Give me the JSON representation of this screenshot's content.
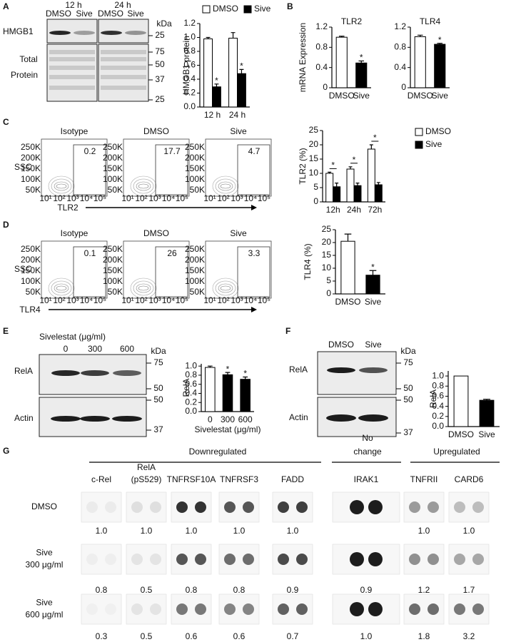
{
  "chart_data": [
    {
      "type": "bar",
      "ylabel": "HMGB1 protein",
      "categories": [
        "12 h",
        "24 h"
      ],
      "series": [
        {
          "name": "DMSO",
          "color": "#ffffff",
          "values": [
            0.98,
            0.99
          ],
          "errors": [
            0.02,
            0.08
          ]
        },
        {
          "name": "Sive",
          "color": "#000000",
          "values": [
            0.29,
            0.48
          ],
          "errors": [
            0.04,
            0.06
          ],
          "markers": [
            "*",
            "*"
          ]
        }
      ],
      "ylim": [
        0,
        1.2
      ],
      "yticks": [
        {
          "value": 0,
          "label": "0.0"
        },
        0.2,
        0.4,
        0.6,
        0.8,
        {
          "value": 1,
          "label": "1.0"
        },
        1.2
      ],
      "legend": "top"
    },
    {
      "type": "bar",
      "title": "TLR2",
      "ylabel": "mRNA Expression",
      "categories": [
        "DMSO",
        "Sive"
      ],
      "values": [
        1.0,
        0.49
      ],
      "errors": [
        0.02,
        0.04
      ],
      "colors": [
        "#ffffff",
        "#000000"
      ],
      "markers": [
        null,
        "*"
      ],
      "ylim": [
        0,
        1.2
      ],
      "yticks": [
        0,
        0.4,
        0.8,
        1.2
      ]
    },
    {
      "type": "bar",
      "title": "TLR4",
      "categories": [
        "DMSO",
        "Sive"
      ],
      "values": [
        1.01,
        0.86
      ],
      "errors": [
        0.03,
        0.02
      ],
      "colors": [
        "#ffffff",
        "#000000"
      ],
      "markers": [
        null,
        "*"
      ],
      "ylim": [
        0,
        1.2
      ],
      "yticks": [
        0,
        0.4,
        0.8,
        1.2
      ]
    },
    {
      "type": "bar",
      "ylabel": "TLR2 (%)",
      "categories": [
        "12h",
        "24h",
        "72h"
      ],
      "series": [
        {
          "name": "DMSO",
          "color": "#ffffff",
          "values": [
            10,
            11.5,
            18.5
          ],
          "errors": [
            0.4,
            0.8,
            1.5
          ]
        },
        {
          "name": "Sive",
          "color": "#000000",
          "values": [
            5.3,
            5.7,
            6.0
          ],
          "errors": [
            1.3,
            0.9,
            0.8
          ]
        }
      ],
      "group_markers": [
        "*",
        "*",
        "*"
      ],
      "ylim": [
        0,
        25
      ],
      "yticks": [
        0,
        5,
        10,
        15,
        20,
        25
      ],
      "legend": "right"
    },
    {
      "type": "bar",
      "ylabel": "TLR4 (%)",
      "categories": [
        "DMSO",
        "Sive"
      ],
      "values": [
        20.5,
        7.3
      ],
      "errors": [
        2.8,
        1.8
      ],
      "colors": [
        "#ffffff",
        "#000000"
      ],
      "markers": [
        null,
        "*"
      ],
      "ylim": [
        0,
        25
      ],
      "yticks": [
        0,
        5,
        10,
        15,
        20,
        25
      ]
    },
    {
      "type": "bar",
      "ylabel": "RelA",
      "xlabel": "Sivelestat (μg/ml)",
      "categories": [
        "0",
        "300",
        "600"
      ],
      "values": [
        0.97,
        0.81,
        0.71
      ],
      "errors": [
        0.03,
        0.05,
        0.05
      ],
      "colors": [
        "#ffffff",
        "#000000",
        "#000000"
      ],
      "markers": [
        null,
        "*",
        "*"
      ],
      "ylim": [
        0,
        1.05
      ],
      "yticks": [
        {
          "value": 0,
          "label": "0.0"
        },
        0.2,
        0.4,
        0.6,
        0.8,
        {
          "value": 1,
          "label": "1.0"
        }
      ]
    },
    {
      "type": "bar",
      "ylabel": "RelA",
      "categories": [
        "DMSO",
        "Sive"
      ],
      "values": [
        1.0,
        0.52
      ],
      "errors": [
        null,
        0.02
      ],
      "colors": [
        "#ffffff",
        "#000000"
      ],
      "ylim": [
        0,
        1.1
      ],
      "yticks": [
        {
          "value": 0,
          "label": "0.0"
        },
        0.2,
        0.4,
        0.6,
        0.8,
        {
          "value": 1,
          "label": "1.0"
        }
      ]
    }
  ],
  "figure": {
    "letters": [
      "A",
      "B",
      "C",
      "D",
      "E",
      "F",
      "G"
    ],
    "blot_a": {
      "times": [
        "12 h",
        "24 h"
      ],
      "lanes": [
        "DMSO",
        "Sive",
        "DMSO",
        "Sive"
      ],
      "rows": [
        "HMGB1",
        "Total",
        "Protein"
      ],
      "kda": [
        "kDa",
        "25",
        "75",
        "50",
        "37",
        "25"
      ]
    },
    "flow_ticks": {
      "y": [
        "50K",
        "100K",
        "150K",
        "200K",
        "250K"
      ],
      "x": [
        "10¹",
        "10²",
        "10³",
        "10⁴",
        "10⁵"
      ]
    },
    "flow_c": {
      "titles": [
        "Isotype",
        "DMSO",
        "Sive"
      ],
      "gates": [
        "0.2",
        "17.7",
        "4.7"
      ],
      "y_label": "SSC",
      "x_label": "TLR2"
    },
    "flow_d": {
      "titles": [
        "Isotype",
        "DMSO",
        "Sive"
      ],
      "gates": [
        "0.1",
        "26",
        "3.3"
      ],
      "y_label": "SSC",
      "x_label": "TLR4"
    },
    "blot_e": {
      "header": "Sivelestat (μg/ml)",
      "lanes": [
        "0",
        "300",
        "600"
      ],
      "rows": [
        "RelA",
        "Actin"
      ],
      "kda": [
        "kDa",
        "75",
        "50",
        "50",
        "37"
      ]
    },
    "blot_f": {
      "lanes": [
        "DMSO",
        "Sive"
      ],
      "rows": [
        "RelA",
        "Actin"
      ],
      "kda": [
        "kDa",
        "75",
        "50",
        "50",
        "37"
      ]
    },
    "array_g": {
      "groups": [
        [
          "Downregulated"
        ],
        [
          "No",
          "change"
        ],
        [
          "Upregulated"
        ]
      ],
      "columns": [
        [
          "c-Rel"
        ],
        [
          "RelA",
          "(pS529)"
        ],
        [
          "TNFRSF10A"
        ],
        [
          "TNFRSF3"
        ],
        [
          "FADD"
        ],
        [
          "IRAK1"
        ],
        [
          "TNFRII"
        ],
        [
          "CARD6"
        ]
      ],
      "rows": [
        {
          "label": [
            "DMSO"
          ],
          "values": [
            "1.0",
            "1.0",
            "1.0",
            "1.0",
            "1.0",
            null,
            "1.0",
            "1.0"
          ]
        },
        {
          "label": [
            "Sive",
            "300 μg/ml"
          ],
          "values": [
            "0.8",
            "0.5",
            "0.8",
            "0.8",
            "0.9",
            "0.9",
            "1.2",
            "1.7"
          ]
        },
        {
          "label": [
            "Sive",
            "600 μg/ml"
          ],
          "values": [
            "0.3",
            "0.5",
            "0.6",
            "0.6",
            "0.7",
            "1.0",
            "1.8",
            "3.2"
          ]
        }
      ]
    }
  }
}
